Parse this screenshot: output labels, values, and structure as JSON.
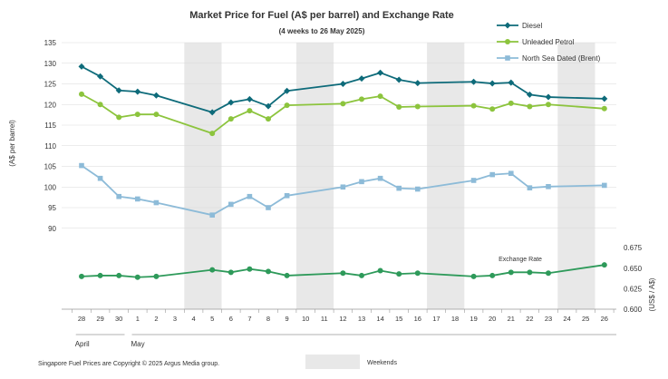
{
  "chart_data": {
    "type": "line",
    "title": "Market Price for Fuel (A$ per barrel) and Exchange  Rate",
    "subtitle": "(4 weeks to 26 May  2025)",
    "ylabel": "(A$ per barrel)",
    "ylabel_right": "(US$ / A$)",
    "ylim": [
      90,
      135
    ],
    "yticks": [
      90,
      95,
      100,
      105,
      110,
      115,
      120,
      125,
      130,
      135
    ],
    "ylim_right": [
      0.6,
      0.675
    ],
    "yticks_right": [
      "0.600",
      "0.625",
      "0.650",
      "0.675"
    ],
    "x": [
      "28",
      "29",
      "30",
      "1",
      "2",
      "3",
      "4",
      "5",
      "6",
      "7",
      "8",
      "9",
      "10",
      "11",
      "12",
      "13",
      "14",
      "15",
      "16",
      "17",
      "18",
      "19",
      "20",
      "21",
      "22",
      "23",
      "24",
      "25",
      "26"
    ],
    "month_labels": [
      {
        "label": "April",
        "start": 0,
        "end": 2
      },
      {
        "label": "May",
        "start": 3,
        "end": 28
      }
    ],
    "weekend_bands": [
      [
        6,
        7
      ],
      [
        12,
        13
      ],
      [
        19,
        20
      ],
      [
        26,
        27
      ]
    ],
    "series": [
      {
        "name": "Diesel",
        "axis": "left",
        "color": "#0e6b7a",
        "marker": "diamond",
        "values": [
          129.2,
          126.8,
          123.4,
          123.1,
          122.2,
          null,
          null,
          118.1,
          120.5,
          121.3,
          119.6,
          123.3,
          null,
          null,
          125.0,
          126.3,
          127.7,
          126.0,
          125.2,
          null,
          null,
          125.5,
          125.1,
          125.3,
          122.4,
          121.8,
          null,
          null,
          121.4
        ]
      },
      {
        "name": "Unleaded Petrol",
        "axis": "left",
        "color": "#8cc43d",
        "marker": "circle",
        "values": [
          122.5,
          120.0,
          116.9,
          117.6,
          117.6,
          null,
          null,
          113.0,
          116.5,
          118.5,
          116.5,
          119.8,
          null,
          null,
          120.2,
          121.3,
          122.0,
          119.4,
          119.5,
          null,
          null,
          119.7,
          118.9,
          120.3,
          119.5,
          120.0,
          null,
          null,
          119.0
        ]
      },
      {
        "name": "North Sea Dated (Brent)",
        "axis": "left",
        "color": "#8dbbd8",
        "marker": "square",
        "values": [
          105.2,
          102.1,
          97.7,
          97.1,
          96.2,
          null,
          null,
          93.2,
          95.8,
          97.7,
          95.0,
          97.9,
          null,
          null,
          100.0,
          101.3,
          102.1,
          99.7,
          99.5,
          null,
          null,
          101.6,
          103.0,
          103.3,
          99.8,
          100.1,
          null,
          null,
          100.4
        ]
      },
      {
        "name": "Exchange  Rate",
        "axis": "right",
        "color": "#2e9a5a",
        "marker": "circle",
        "values": [
          0.64,
          0.641,
          0.641,
          0.639,
          0.64,
          null,
          null,
          0.648,
          0.645,
          0.649,
          0.646,
          0.641,
          null,
          null,
          0.644,
          0.641,
          0.647,
          0.643,
          0.644,
          null,
          null,
          0.64,
          0.641,
          0.645,
          0.645,
          0.644,
          null,
          null,
          0.654
        ]
      }
    ],
    "legend_position": "top-right",
    "footer_text": "Singapore  Fuel Prices are Copyright © 2025  Argus Media group.",
    "weekend_legend_label": "Weekends"
  }
}
